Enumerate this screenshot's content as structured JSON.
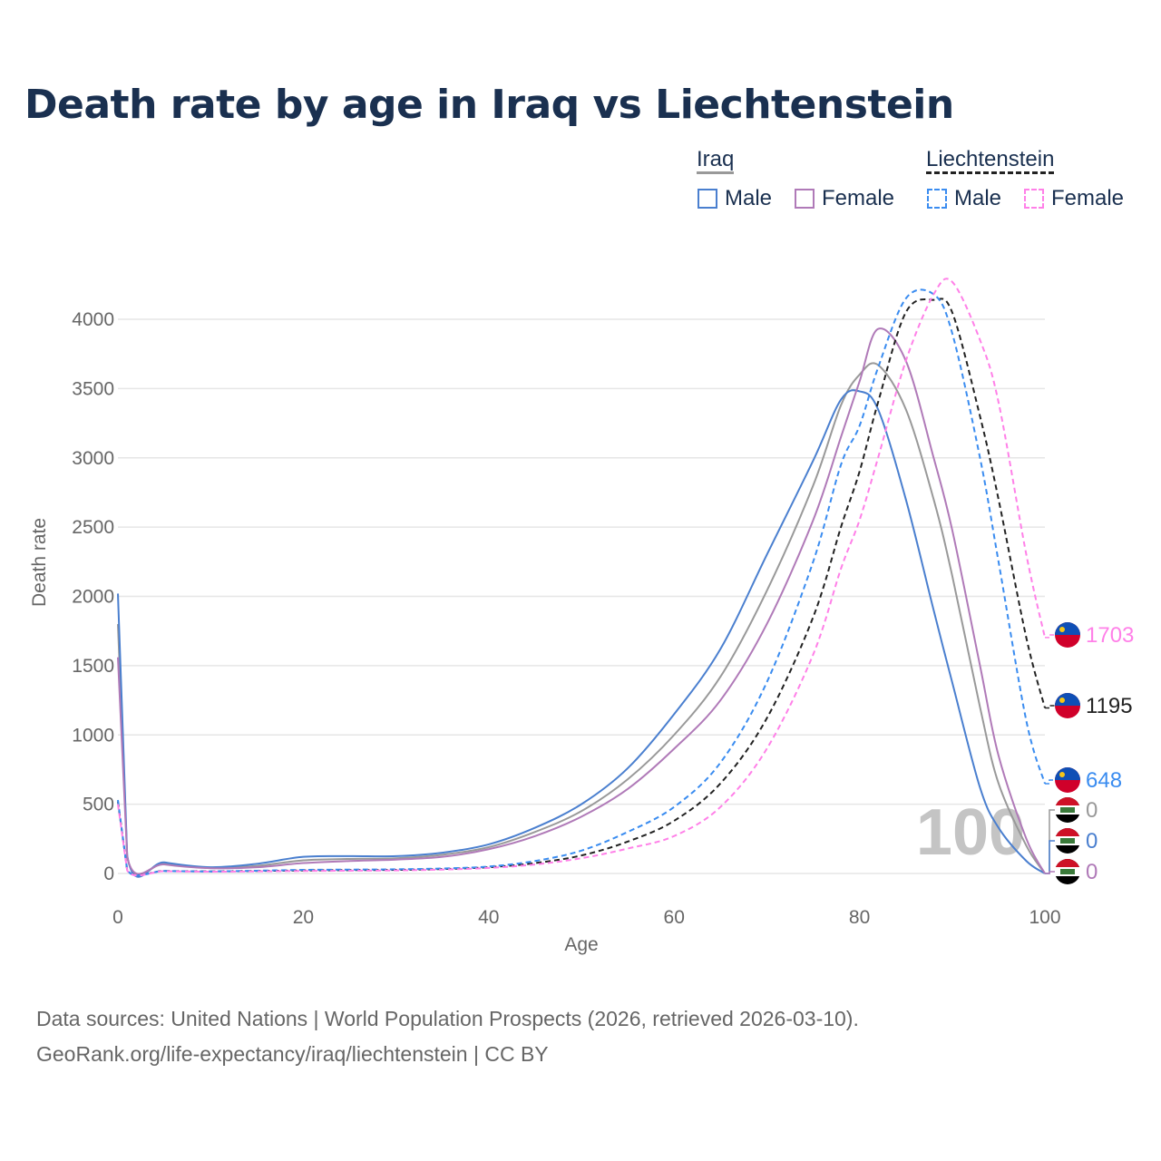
{
  "title": "Death rate by age in Iraq vs Liechtenstein",
  "legend": {
    "groups": [
      {
        "name": "Iraq",
        "items": [
          "Male",
          "Female"
        ]
      },
      {
        "name": "Liechtenstein",
        "items": [
          "Male",
          "Female"
        ]
      }
    ]
  },
  "source": [
    "Data sources: United Nations | World Population Prospects (2026, retrieved 2026-03-10).",
    "GeoRank.org/life-expectancy/iraq/liechtenstein | CC BY"
  ],
  "watermark": "100",
  "chart_data": {
    "type": "line",
    "xlabel": "Age",
    "ylabel": "Death rate",
    "xlim": [
      0,
      100
    ],
    "ylim": [
      0,
      4300
    ],
    "xticks": [
      0,
      20,
      40,
      60,
      80,
      100
    ],
    "yticks": [
      0,
      500,
      1000,
      1500,
      2000,
      2500,
      3000,
      3500,
      4000
    ],
    "x": [
      0,
      1,
      5,
      10,
      15,
      20,
      25,
      30,
      35,
      40,
      45,
      50,
      55,
      60,
      65,
      70,
      75,
      78,
      80,
      82,
      85,
      88,
      90,
      93,
      95,
      98,
      100
    ],
    "series": [
      {
        "name": "Iraq Total",
        "color": "#999999",
        "dash": false,
        "end_label": "0",
        "values": [
          1800,
          125,
          70,
          40,
          55,
          95,
          105,
          110,
          135,
          190,
          300,
          450,
          680,
          1000,
          1420,
          2040,
          2800,
          3380,
          3600,
          3670,
          3350,
          2700,
          2150,
          1200,
          650,
          200,
          0
        ]
      },
      {
        "name": "Iraq Male",
        "color": "#4a7fcf",
        "dash": false,
        "end_label": "0",
        "values": [
          2020,
          130,
          80,
          45,
          70,
          120,
          125,
          125,
          150,
          210,
          330,
          500,
          760,
          1150,
          1620,
          2300,
          2980,
          3420,
          3480,
          3350,
          2700,
          1900,
          1380,
          620,
          330,
          90,
          0
        ]
      },
      {
        "name": "Iraq Female",
        "color": "#b07ab8",
        "dash": false,
        "end_label": "0",
        "values": [
          1560,
          120,
          65,
          38,
          45,
          75,
          90,
          100,
          120,
          175,
          270,
          410,
          610,
          900,
          1250,
          1800,
          2550,
          3150,
          3550,
          3930,
          3700,
          3000,
          2480,
          1500,
          850,
          250,
          0
        ]
      },
      {
        "name": "Liechtenstein Total",
        "color": "#222222",
        "dash": true,
        "end_label": "1195",
        "values": [
          520,
          25,
          18,
          15,
          18,
          22,
          24,
          26,
          32,
          45,
          75,
          130,
          230,
          380,
          650,
          1120,
          1850,
          2500,
          2900,
          3400,
          4050,
          4140,
          4050,
          3300,
          2700,
          1700,
          1195
        ]
      },
      {
        "name": "Liechtenstein Male",
        "color": "#3a8cf0",
        "dash": true,
        "end_label": "648",
        "values": [
          530,
          25,
          18,
          15,
          20,
          26,
          28,
          30,
          36,
          50,
          90,
          165,
          300,
          480,
          800,
          1380,
          2250,
          2950,
          3230,
          3650,
          4150,
          4180,
          3900,
          3000,
          2250,
          1100,
          648
        ]
      },
      {
        "name": "Liechtenstein Female",
        "color": "#ff80e8",
        "dash": true,
        "end_label": "1703",
        "values": [
          500,
          22,
          16,
          13,
          15,
          18,
          20,
          22,
          28,
          40,
          65,
          110,
          180,
          270,
          480,
          900,
          1580,
          2200,
          2550,
          3000,
          3700,
          4180,
          4270,
          3850,
          3400,
          2300,
          1703
        ]
      }
    ]
  }
}
